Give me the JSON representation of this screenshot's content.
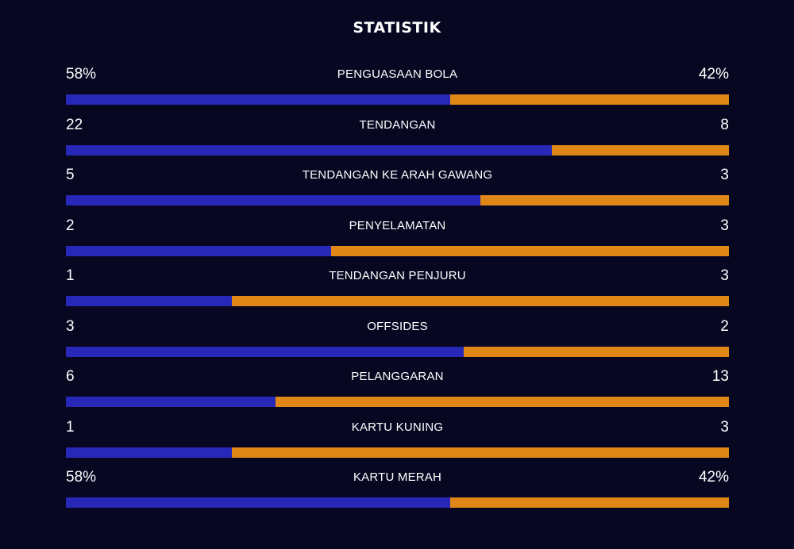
{
  "title": "STATISTIK",
  "colors": {
    "background": "#070722",
    "home": "#2727b8",
    "away": "#e08718",
    "text": "#ffffff"
  },
  "stats": [
    {
      "name": "PENGUASAAN BOLA",
      "home": "58%",
      "away": "42%",
      "home_share": 0.58
    },
    {
      "name": "TENDANGAN",
      "home": "22",
      "away": "8",
      "home_share": 0.733
    },
    {
      "name": "TENDANGAN KE ARAH GAWANG",
      "home": "5",
      "away": "3",
      "home_share": 0.625
    },
    {
      "name": "PENYELAMATAN",
      "home": "2",
      "away": "3",
      "home_share": 0.4
    },
    {
      "name": "TENDANGAN PENJURU",
      "home": "1",
      "away": "3",
      "home_share": 0.25
    },
    {
      "name": "OFFSIDES",
      "home": "3",
      "away": "2",
      "home_share": 0.6
    },
    {
      "name": "PELANGGARAN",
      "home": "6",
      "away": "13",
      "home_share": 0.316
    },
    {
      "name": "KARTU KUNING",
      "home": "1",
      "away": "3",
      "home_share": 0.25
    },
    {
      "name": "KARTU MERAH",
      "home": "58%",
      "away": "42%",
      "home_share": 0.58
    }
  ]
}
